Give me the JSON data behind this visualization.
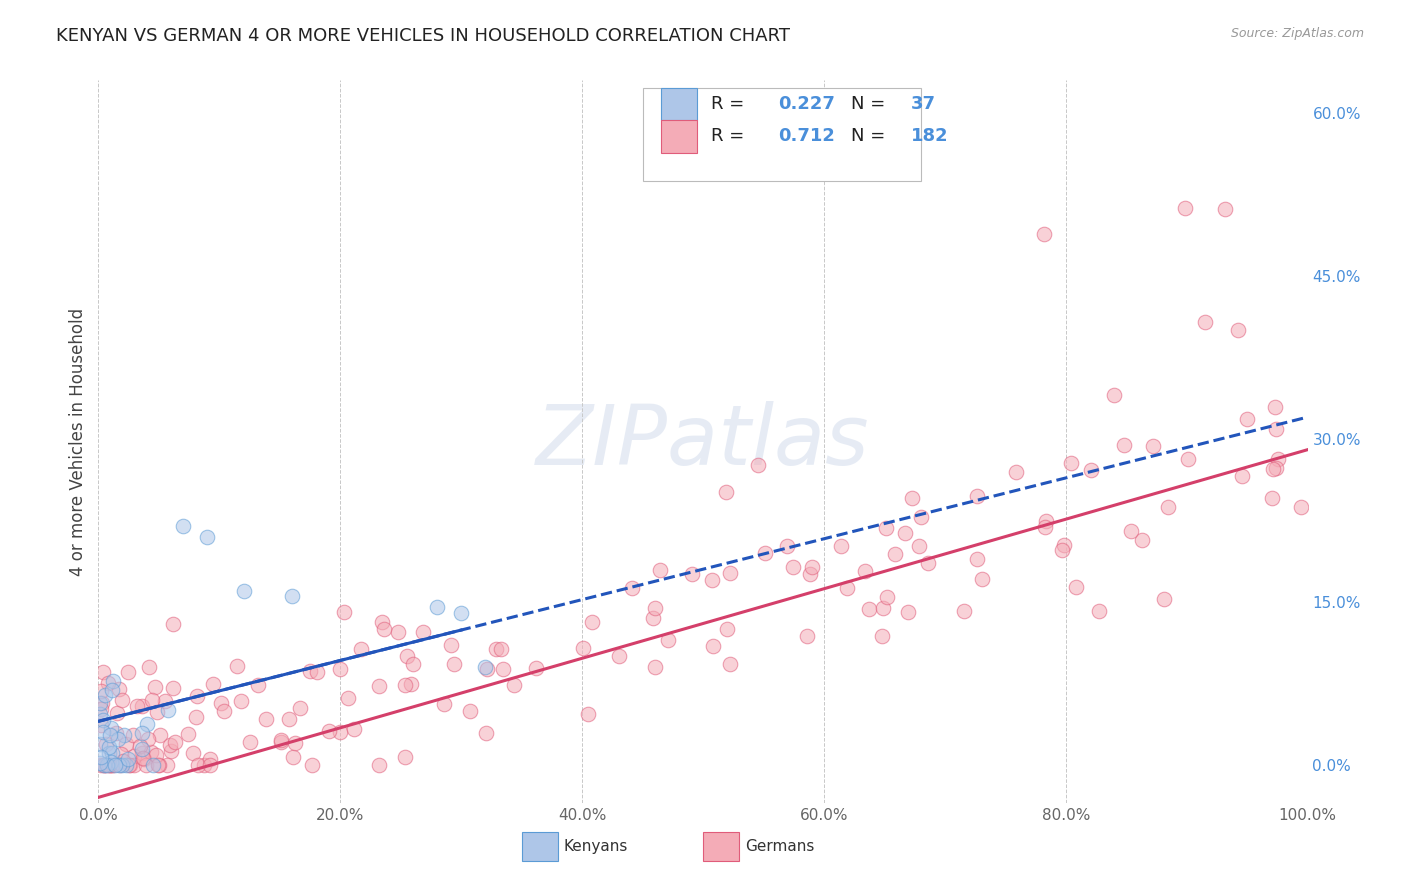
{
  "title": "KENYAN VS GERMAN 4 OR MORE VEHICLES IN HOUSEHOLD CORRELATION CHART",
  "source": "Source: ZipAtlas.com",
  "ylabel": "4 or more Vehicles in Household",
  "watermark": "ZIPatlas",
  "xmin": 0.0,
  "xmax": 100.0,
  "ymin": -3.5,
  "ymax": 63.0,
  "ytick_vals": [
    0,
    15,
    30,
    45,
    60
  ],
  "ytick_labels": [
    "0.0%",
    "15.0%",
    "30.0%",
    "45.0%",
    "60.0%"
  ],
  "xtick_vals": [
    0,
    20,
    40,
    60,
    80,
    100
  ],
  "xtick_labels": [
    "0.0%",
    "20.0%",
    "40.0%",
    "60.0%",
    "80.0%",
    "100.0%"
  ],
  "kenyan_fill_color": "#aec6e8",
  "kenyan_edge_color": "#5b9bd5",
  "german_fill_color": "#f4acb7",
  "german_edge_color": "#e05c7a",
  "kenyan_line_color": "#2255bb",
  "german_line_color": "#d43f6a",
  "background_color": "#ffffff",
  "grid_color": "#c8c8c8",
  "title_color": "#222222",
  "axis_label_color": "#444444",
  "right_tick_color": "#4a8fda",
  "bottom_tick_color": "#666666",
  "marker_size": 110,
  "marker_alpha": 0.55,
  "marker_lw": 0.8,
  "line_width": 2.2,
  "figsize": [
    14.06,
    8.92
  ],
  "dpi": 100,
  "watermark_color": "#c8d4e8",
  "watermark_alpha": 0.45,
  "watermark_fontsize": 60
}
